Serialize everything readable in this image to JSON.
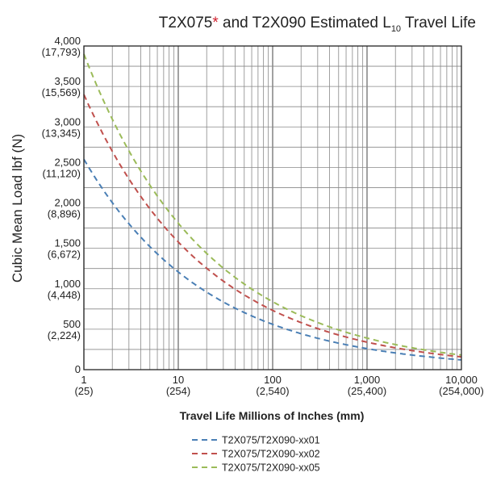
{
  "chart_data": {
    "type": "line",
    "title": {
      "part1": "T2X075",
      "asterisk": "*",
      "part2": " and T2X090 Estimated L",
      "subscript": "10",
      "part3": " Travel Life"
    },
    "xlabel": "Travel Life Millions of Inches (mm)",
    "ylabel": "Cubic Mean Load lbf (N)",
    "x_scale": "log",
    "xlim": [
      1,
      10000
    ],
    "ylim": [
      0,
      4000
    ],
    "grid": true,
    "legend_position": "bottom",
    "x_ticks": [
      {
        "value": 1,
        "label": "1",
        "sublabel": "(25)"
      },
      {
        "value": 10,
        "label": "10",
        "sublabel": "(254)"
      },
      {
        "value": 100,
        "label": "100",
        "sublabel": "(2,540)"
      },
      {
        "value": 1000,
        "label": "1,000",
        "sublabel": "(25,400)"
      },
      {
        "value": 10000,
        "label": "10,000",
        "sublabel": "(254,000)"
      }
    ],
    "y_ticks": [
      {
        "value": 0,
        "label": "0",
        "sublabel": ""
      },
      {
        "value": 500,
        "label": "500",
        "sublabel": "(2,224)"
      },
      {
        "value": 1000,
        "label": "1,000",
        "sublabel": "(4,448)"
      },
      {
        "value": 1500,
        "label": "1,500",
        "sublabel": "(6,672)"
      },
      {
        "value": 2000,
        "label": "2,000",
        "sublabel": "(8,896)"
      },
      {
        "value": 2500,
        "label": "2,500",
        "sublabel": "(11,120)"
      },
      {
        "value": 3000,
        "label": "3,000",
        "sublabel": "(13,345)"
      },
      {
        "value": 3500,
        "label": "3,500",
        "sublabel": "(15,569)"
      },
      {
        "value": 4000,
        "label": "4,000",
        "sublabel": "(17,793)"
      }
    ],
    "series": [
      {
        "name": "T2X075/T2X090-xx01",
        "color": "#4a7fb5",
        "x": [
          1,
          10,
          100,
          1000,
          10000
        ],
        "y": [
          2600,
          1207,
          560,
          260,
          121
        ]
      },
      {
        "name": "T2X075/T2X090-xx02",
        "color": "#c0504d",
        "x": [
          1,
          10,
          100,
          1000,
          10000
        ],
        "y": [
          3400,
          1578,
          733,
          340,
          158
        ]
      },
      {
        "name": "T2X075/T2X090-xx05",
        "color": "#9bbb59",
        "x": [
          1,
          10,
          100,
          1000,
          10000
        ],
        "y": [
          3900,
          1810,
          840,
          390,
          181
        ]
      }
    ]
  }
}
